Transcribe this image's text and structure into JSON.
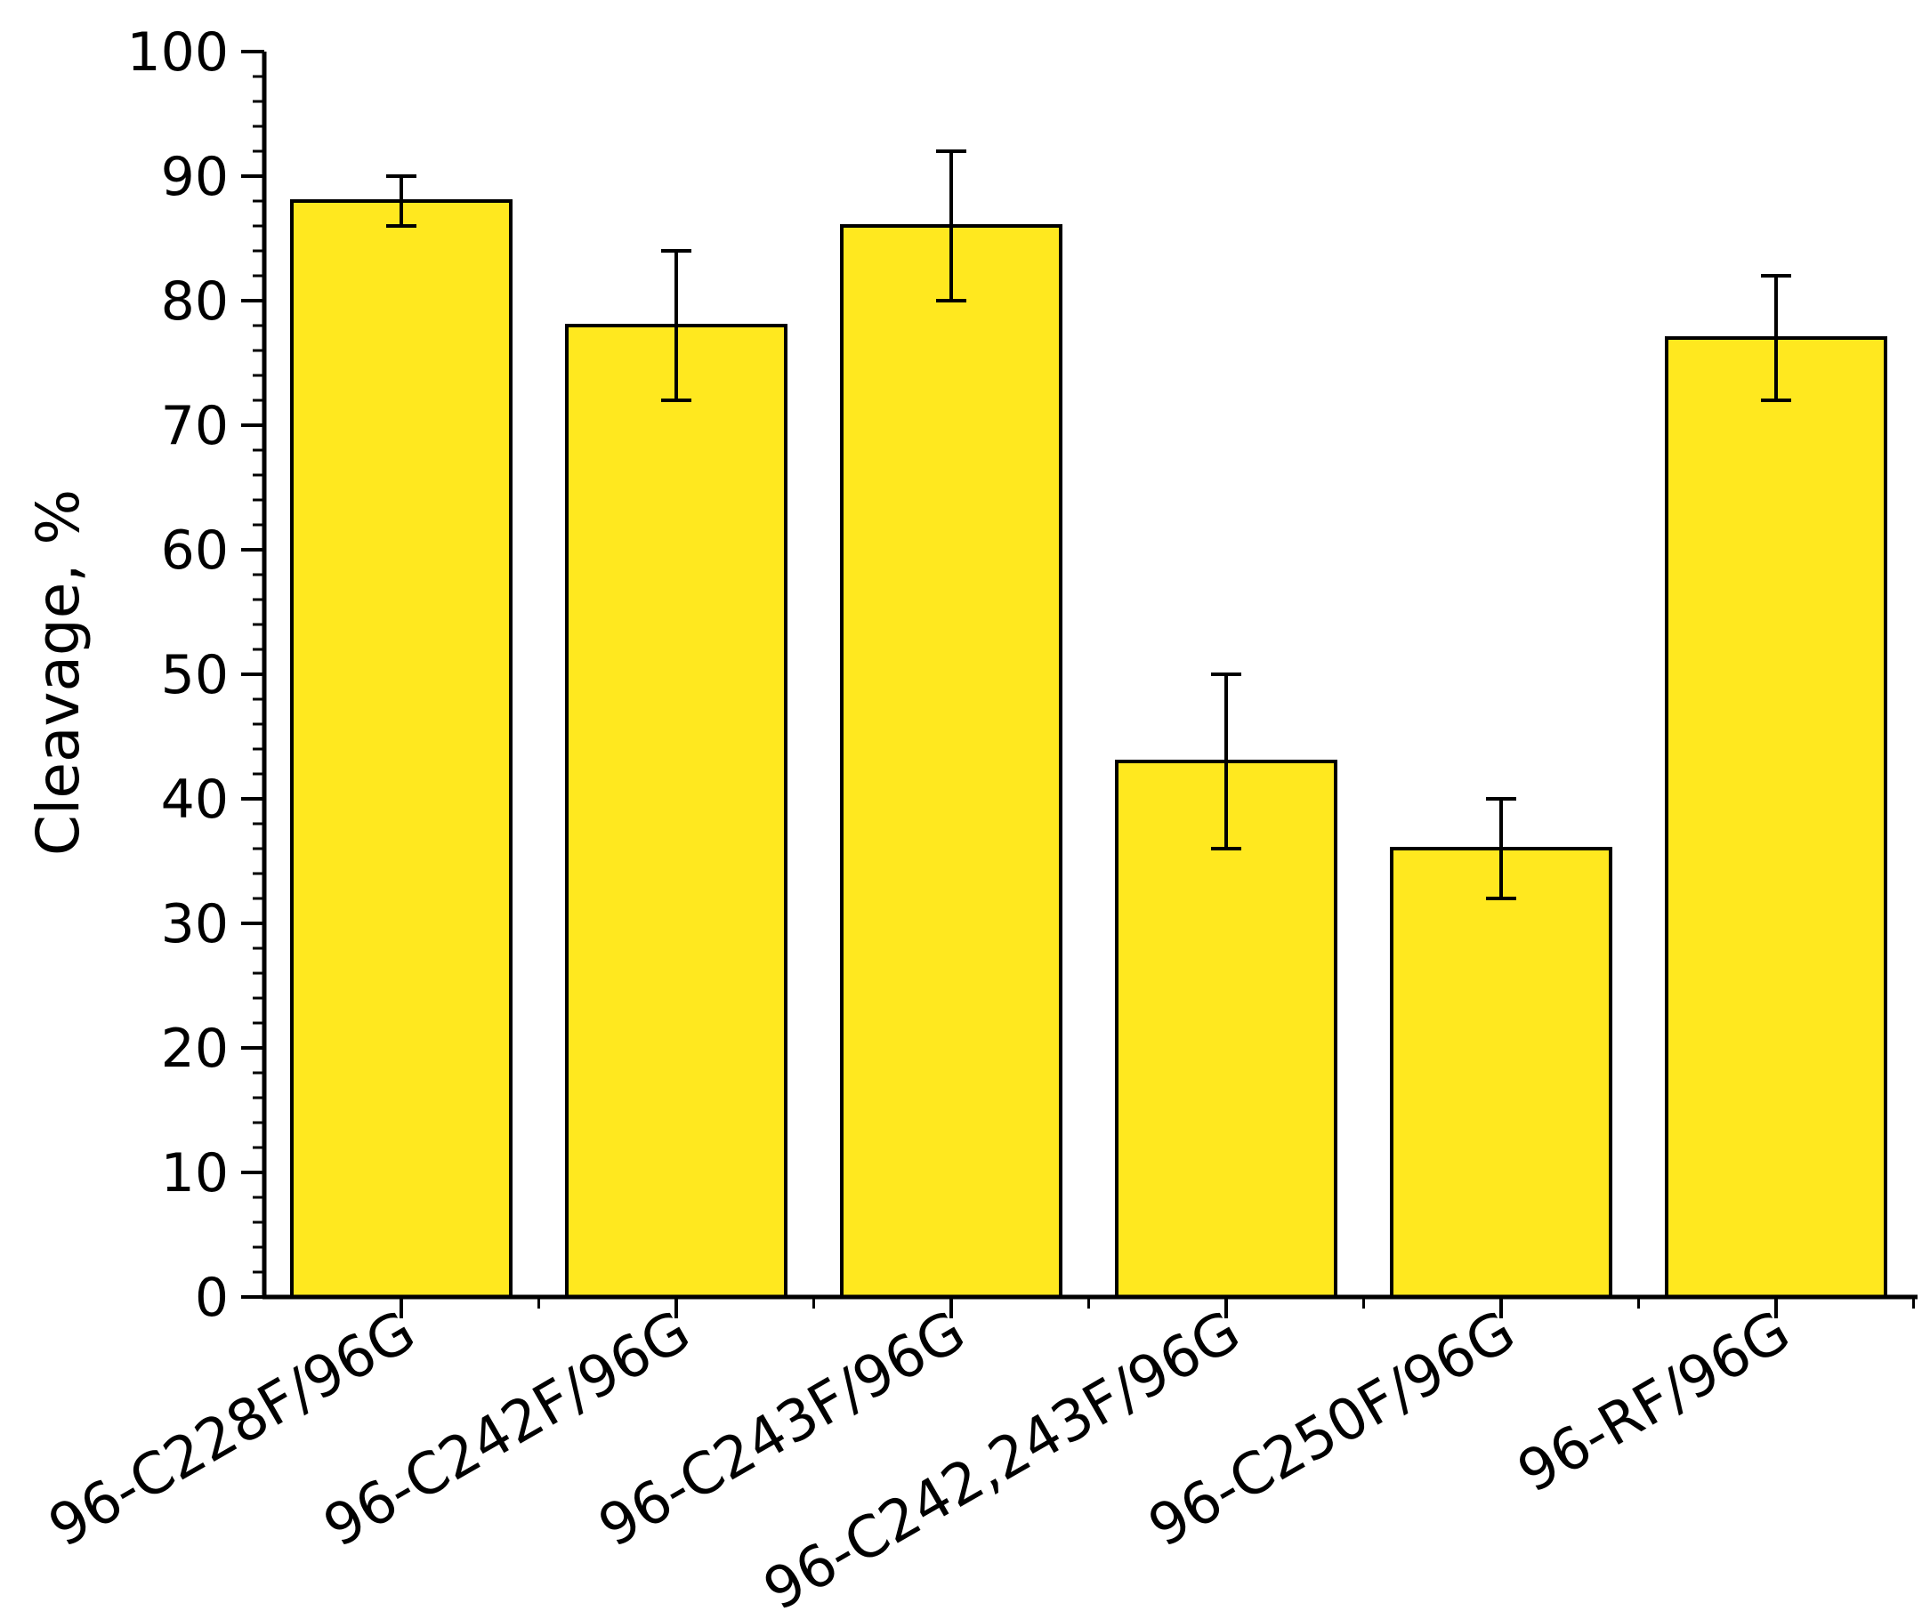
{
  "chart_data": {
    "type": "bar",
    "title": "",
    "xlabel": "",
    "ylabel": "Cleavage, %",
    "ylim": [
      0,
      100
    ],
    "y_major_ticks": [
      0,
      10,
      20,
      30,
      40,
      50,
      60,
      70,
      80,
      90,
      100
    ],
    "y_tick_labels": [
      "0",
      "10",
      "20",
      "30",
      "40",
      "50",
      "60",
      "70",
      "80",
      "90",
      "100"
    ],
    "y_minor_tick_step": 2,
    "categories": [
      "96-C228F/96G",
      "96-C242F/96G",
      "96-C243F/96G",
      "96-C242,243F/96G",
      "96-C250F/96G",
      "96-RF/96G"
    ],
    "values": [
      88,
      78,
      86,
      43,
      36,
      77
    ],
    "error_low": [
      86,
      72,
      80,
      36,
      32,
      72
    ],
    "error_high": [
      90,
      84,
      92,
      50,
      40,
      82
    ],
    "grid": false,
    "legend": "none",
    "bar_color": "#FFE81F",
    "edge_color": "#000000"
  }
}
